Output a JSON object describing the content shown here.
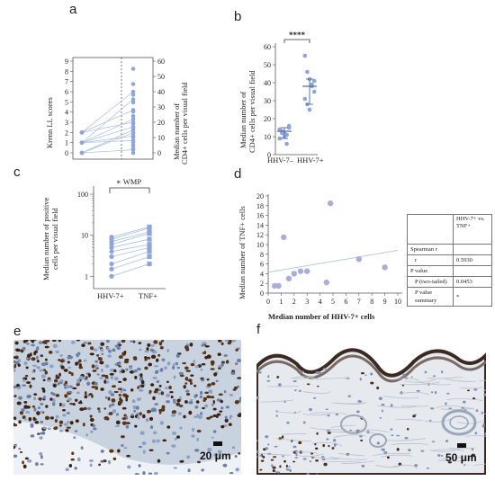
{
  "panels": {
    "a": {
      "label": "a",
      "left_axis_title": "Krenn LL scores",
      "right_axis_title_line1": "Median number of",
      "right_axis_title_line2": "CD4+ cells per visual field",
      "left_ticks": [
        "0",
        "1",
        "2",
        "3",
        "4",
        "5",
        "6",
        "7",
        "8",
        "9"
      ],
      "right_ticks": [
        "0",
        "10",
        "20",
        "30",
        "40",
        "50",
        "60"
      ]
    },
    "b": {
      "label": "b",
      "y_title_line1": "Median number of",
      "y_title_line2": "CD4+ cells per visual field",
      "y_ticks": [
        "0",
        "10",
        "20",
        "30",
        "40",
        "50",
        "60"
      ],
      "categories": [
        "HHV-7–",
        "HHV-7+"
      ],
      "significance": "****"
    },
    "c": {
      "label": "c",
      "y_title_line1": "Median number of positive",
      "y_title_line2": "cells per visual field",
      "y_ticks": [
        "1",
        "10",
        "100"
      ],
      "categories": [
        "HHV-7+",
        "TNF+"
      ],
      "significance": "∗ WMP"
    },
    "d": {
      "label": "d",
      "x_title": "Median number of HHV-7+ cells",
      "y_title": "Median number of TNF+ cells",
      "x_ticks": [
        "0",
        "1",
        "2",
        "3",
        "4",
        "5",
        "6",
        "7",
        "8",
        "9",
        "10"
      ],
      "y_ticks": [
        "0",
        "2",
        "4",
        "6",
        "8",
        "10",
        "12",
        "14",
        "16",
        "18",
        "20"
      ]
    },
    "e": {
      "label": "e",
      "scale": "20 μm"
    },
    "f": {
      "label": "f",
      "scale": "50 μm"
    }
  },
  "stats_table": {
    "header": [
      "",
      "HHV-7+ vs. TNF+"
    ],
    "rows": [
      {
        "label": "Spearman r",
        "value": ""
      },
      {
        "label": "r",
        "value": "0.5930"
      },
      {
        "label": "P value",
        "value": ""
      },
      {
        "label": "P (two-tailed)",
        "value": "0.0453"
      },
      {
        "label": "P value summary",
        "value": "*"
      }
    ]
  },
  "colors": {
    "marker": "#8ea6d6",
    "line": "#a8bce4",
    "errorbar": "#5a74b8",
    "regression": "#a9c3e6",
    "scatter": "#a9aed8"
  },
  "chart_data": [
    {
      "type": "line",
      "panel": "a",
      "description_ids": [
        "left: Krenn LL scores",
        "right: CD4+ cells"
      ],
      "ylim_left": [
        0,
        9
      ],
      "ylim_right": [
        0,
        60
      ],
      "series": [
        {
          "left": 2,
          "right": 20
        },
        {
          "left": 1,
          "right": 22
        },
        {
          "left": 1,
          "right": 17
        },
        {
          "left": 1,
          "right": 11
        },
        {
          "left": 0,
          "right": 15
        },
        {
          "left": 1,
          "right": 8
        },
        {
          "left": 0,
          "right": 2
        },
        {
          "left": 2,
          "right": 28
        },
        {
          "left": 1,
          "right": 35
        },
        {
          "left": 2,
          "right": 40
        },
        {
          "left": 0,
          "right": 13
        }
      ],
      "right_extra_points": [
        55,
        45,
        38,
        33,
        27,
        24,
        19,
        16,
        13,
        10,
        7,
        5,
        3,
        0
      ]
    },
    {
      "type": "scatter",
      "panel": "b",
      "categories": [
        "HHV-7–",
        "HHV-7+"
      ],
      "ylim": [
        0,
        60
      ],
      "series": [
        {
          "name": "HHV-7–",
          "values": [
            14,
            13,
            12,
            11,
            15,
            9,
            13,
            10,
            6,
            16,
            14,
            12
          ],
          "median": 13,
          "q1": 9,
          "q3": 15
        },
        {
          "name": "HHV-7+",
          "values": [
            55,
            46,
            42,
            39,
            35,
            31,
            28,
            25,
            38,
            41
          ],
          "median": 38,
          "q1": 28,
          "q3": 42
        }
      ]
    },
    {
      "type": "line",
      "panel": "c",
      "categories": [
        "HHV-7+",
        "TNF+"
      ],
      "yscale": "log",
      "ylim": [
        0.5,
        100
      ],
      "pairs": [
        [
          1,
          2
        ],
        [
          2,
          4
        ],
        [
          3,
          5
        ],
        [
          4,
          6
        ],
        [
          5,
          8
        ],
        [
          7,
          12
        ],
        [
          8,
          15
        ],
        [
          9,
          16
        ],
        [
          1.5,
          3
        ],
        [
          6,
          11
        ]
      ]
    },
    {
      "type": "scatter",
      "panel": "d",
      "xlim": [
        0,
        10
      ],
      "ylim": [
        0,
        20
      ],
      "points": [
        [
          0.5,
          1.5
        ],
        [
          0.8,
          1.5
        ],
        [
          1.2,
          11.5
        ],
        [
          1.6,
          3
        ],
        [
          2.0,
          4
        ],
        [
          2.5,
          4.5
        ],
        [
          3.0,
          4.5
        ],
        [
          4.5,
          2.2
        ],
        [
          4.8,
          18.5
        ],
        [
          7,
          7
        ],
        [
          9,
          5.3
        ]
      ],
      "regression": [
        [
          0,
          4.3
        ],
        [
          10,
          8.8
        ]
      ]
    }
  ]
}
